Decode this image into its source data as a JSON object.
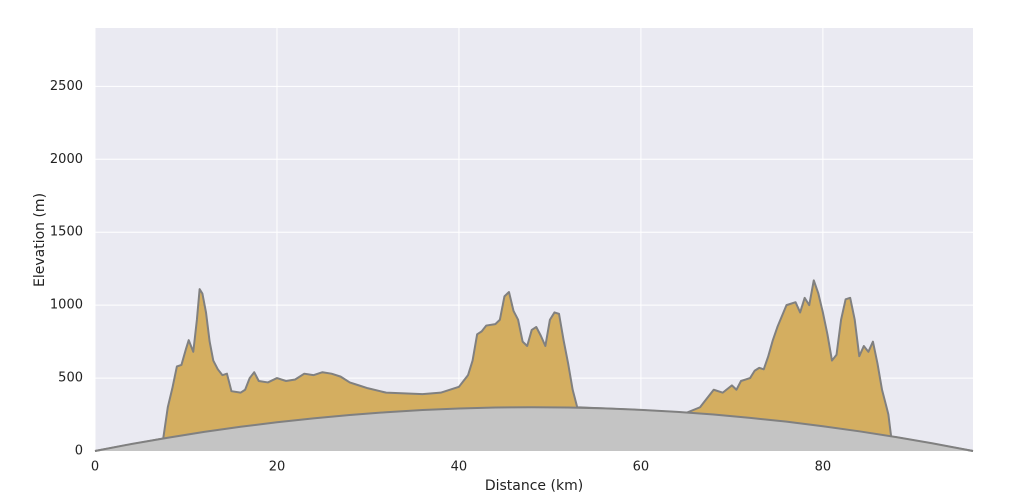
{
  "chart_data": {
    "type": "area",
    "xlabel": "Distance (km)",
    "ylabel": "Elevation (m)",
    "xlim": [
      0,
      96.5
    ],
    "ylim": [
      0,
      2900
    ],
    "xticks": [
      0,
      20,
      40,
      60,
      80
    ],
    "yticks": [
      0,
      500,
      1000,
      1500,
      2000,
      2500
    ],
    "grid": true,
    "background": "#eaeaf2",
    "line_color": "#808080",
    "series": [
      {
        "color": "#d4ae60",
        "x": [
          0,
          7.5,
          8,
          8.5,
          9,
          9.5,
          10,
          10.3,
          10.8,
          11.2,
          11.5,
          11.8,
          12.2,
          12.6,
          13,
          13.5,
          14,
          14.5,
          15,
          16,
          16.5,
          17,
          17.5,
          18,
          19,
          20,
          21,
          22,
          23,
          24,
          25,
          26,
          27,
          28,
          29,
          30,
          32,
          34,
          36,
          38,
          40,
          41,
          41.5,
          42,
          42.5,
          43,
          44,
          44.5,
          45,
          45.5,
          46,
          46.5,
          47,
          47.5,
          48,
          48.5,
          49,
          49.5,
          50,
          50.5,
          51,
          51.5,
          52,
          52.5,
          53,
          60,
          65,
          66.5,
          67,
          68,
          69,
          70,
          70.5,
          71,
          72,
          72.5,
          73,
          73.5,
          74,
          74.5,
          75,
          76,
          77,
          77.5,
          78,
          78.5,
          79,
          79.5,
          80,
          80.5,
          81,
          81.5,
          82,
          82.5,
          83,
          83.5,
          84,
          84.5,
          85,
          85.5,
          86,
          86.5,
          87,
          87.2,
          87.5,
          96.5
        ],
        "values": [
          0,
          86,
          300,
          430,
          580,
          590,
          700,
          760,
          680,
          900,
          1110,
          1080,
          950,
          750,
          620,
          560,
          520,
          530,
          410,
          400,
          420,
          500,
          540,
          480,
          470,
          500,
          480,
          490,
          530,
          520,
          540,
          530,
          510,
          470,
          450,
          430,
          400,
          395,
          390,
          400,
          440,
          520,
          620,
          800,
          820,
          860,
          870,
          900,
          1060,
          1090,
          960,
          900,
          750,
          720,
          830,
          850,
          790,
          720,
          900,
          950,
          940,
          760,
          600,
          420,
          300,
          280,
          262,
          300,
          340,
          420,
          400,
          450,
          420,
          480,
          500,
          550,
          570,
          560,
          650,
          760,
          850,
          1000,
          1020,
          950,
          1050,
          1000,
          1170,
          1080,
          950,
          800,
          620,
          660,
          900,
          1040,
          1050,
          900,
          650,
          720,
          680,
          750,
          600,
          420,
          300,
          250,
          100,
          0
        ]
      },
      {
        "color": "#c4c4c4",
        "x": [
          0,
          4,
          8,
          12,
          16,
          20,
          24,
          28,
          32,
          36,
          40,
          44,
          48,
          52,
          56,
          60,
          64,
          68,
          72,
          76,
          80,
          84,
          88,
          92,
          96.5
        ],
        "values": [
          0,
          48,
          91,
          131,
          166,
          197,
          224,
          247,
          266,
          281,
          291,
          298,
          300,
          298,
          292,
          282,
          268,
          250,
          227,
          201,
          170,
          135,
          96,
          53,
          0
        ]
      }
    ]
  }
}
